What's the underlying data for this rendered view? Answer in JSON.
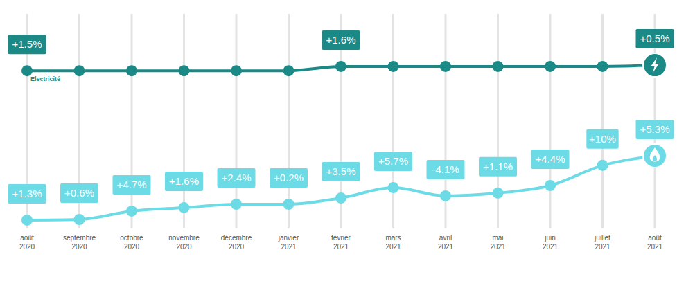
{
  "chart_data": {
    "type": "line",
    "categories": [
      "août 2020",
      "septembre 2020",
      "octobre 2020",
      "novembre 2020",
      "décembre 2020",
      "janvier 2021",
      "février 2021",
      "mars 2021",
      "avril 2021",
      "mai 2021",
      "juin 2021",
      "juillet 2021",
      "août 2021"
    ],
    "ylim": [
      0,
      100
    ],
    "grid": true,
    "tick_labels": "x",
    "series": [
      {
        "name": "Electricité",
        "color": "#1b8a87",
        "marker": "circle",
        "line_style": "smooth",
        "values": [
          73.5,
          73.5,
          73.5,
          73.5,
          73.5,
          73.5,
          75.5,
          75.5,
          75.5,
          75.5,
          75.5,
          75.5,
          76.1
        ],
        "changes": [
          1.5,
          null,
          null,
          null,
          null,
          null,
          1.6,
          null,
          null,
          null,
          null,
          null,
          0.5
        ],
        "change_labels": [
          "+1.5%",
          null,
          null,
          null,
          null,
          null,
          "+1.6%",
          null,
          null,
          null,
          null,
          null,
          "+0.5%"
        ]
      },
      {
        "color": "#6ddbe5",
        "marker": "circle",
        "line_style": "smooth",
        "values": [
          3.9,
          4.2,
          8.1,
          9.7,
          11.3,
          11.3,
          14.2,
          19.0,
          15.2,
          16.5,
          20.0,
          29.4,
          33.9
        ],
        "changes": [
          1.3,
          0.6,
          4.7,
          1.6,
          2.4,
          0.2,
          3.5,
          5.7,
          -4.1,
          1.1,
          4.4,
          10,
          5.3
        ],
        "change_labels": [
          "+1.3%",
          "+0.6%",
          "+4.7%",
          "+1.6%",
          "+2.4%",
          "+0.2%",
          "+3.5%",
          "+5.7%",
          "-4.1%",
          "+1.1%",
          "+4.4%",
          "+10%",
          "+5.3%"
        ]
      }
    ]
  }
}
